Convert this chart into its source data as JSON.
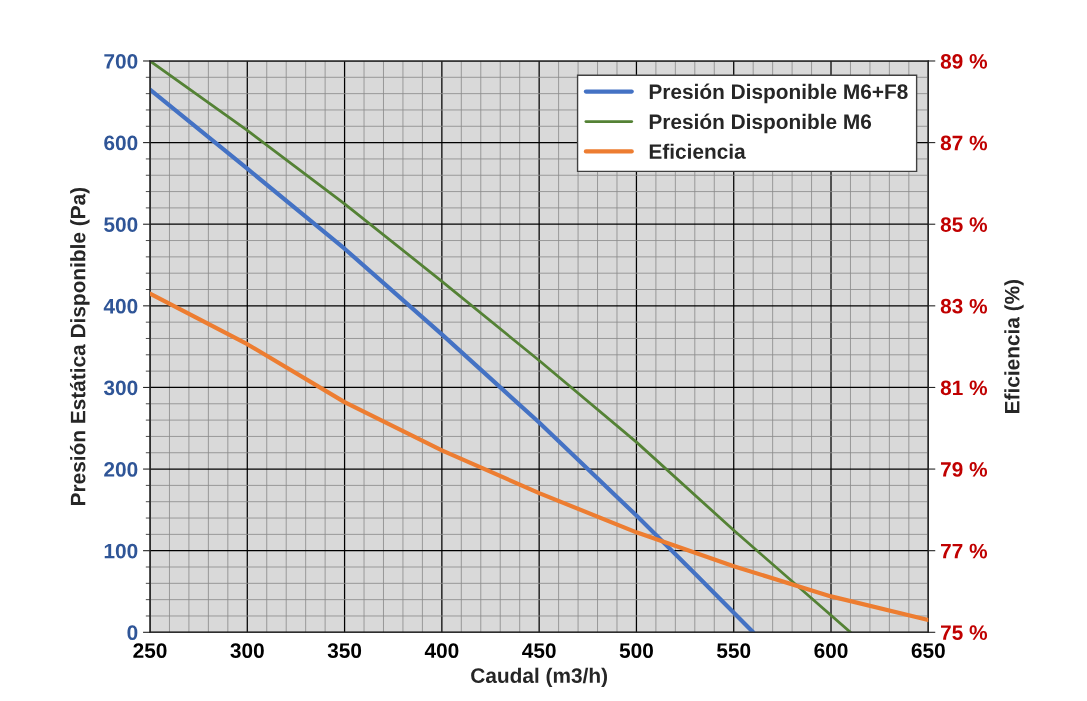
{
  "chart_data": {
    "type": "line",
    "xlabel": "Caudal (m3/h)",
    "ylabel": "Presión Estática Disponible (Pa)",
    "y2label": "Eficiencia (%)",
    "series": [
      {
        "name": "Presión Disponible M6+F8",
        "color": "#4472c4",
        "x": [
          250,
          300,
          350,
          400,
          450,
          500,
          530,
          560
        ],
        "values": [
          665,
          568,
          470,
          365,
          257,
          143,
          72,
          0
        ]
      },
      {
        "name": "Presión Disponible M6",
        "color": "#548235",
        "x": [
          250,
          300,
          350,
          400,
          450,
          500,
          550,
          610
        ],
        "values": [
          700,
          615,
          525,
          430,
          333,
          233,
          125,
          0
        ]
      },
      {
        "name": "Eficiencia",
        "color": "#ed7d31",
        "axis": "y2",
        "x": [
          250,
          300,
          350,
          400,
          450,
          500,
          550,
          600,
          650
        ],
        "values": [
          83.3,
          82.06,
          80.64,
          79.46,
          78.41,
          77.45,
          76.62,
          75.88,
          75.3
        ]
      }
    ],
    "xlim": [
      250,
      650
    ],
    "xticks": [
      250,
      300,
      350,
      400,
      450,
      500,
      550,
      600,
      650
    ],
    "ylim": [
      0,
      700
    ],
    "yticks": [
      0,
      100,
      200,
      300,
      400,
      500,
      600,
      700
    ],
    "y2lim": [
      75,
      89
    ],
    "y2ticks": [
      {
        "value": 75,
        "label": "75 %"
      },
      {
        "value": 77,
        "label": "77 %"
      },
      {
        "value": 79,
        "label": "79 %"
      },
      {
        "value": 81,
        "label": "81 %"
      },
      {
        "value": 83,
        "label": "83 %"
      },
      {
        "value": 85,
        "label": "85 %"
      },
      {
        "value": 87,
        "label": "87 %"
      },
      {
        "value": 89,
        "label": "89 %"
      }
    ],
    "grid": true,
    "legend": "top right",
    "marker": "none",
    "line_style": "solid"
  }
}
